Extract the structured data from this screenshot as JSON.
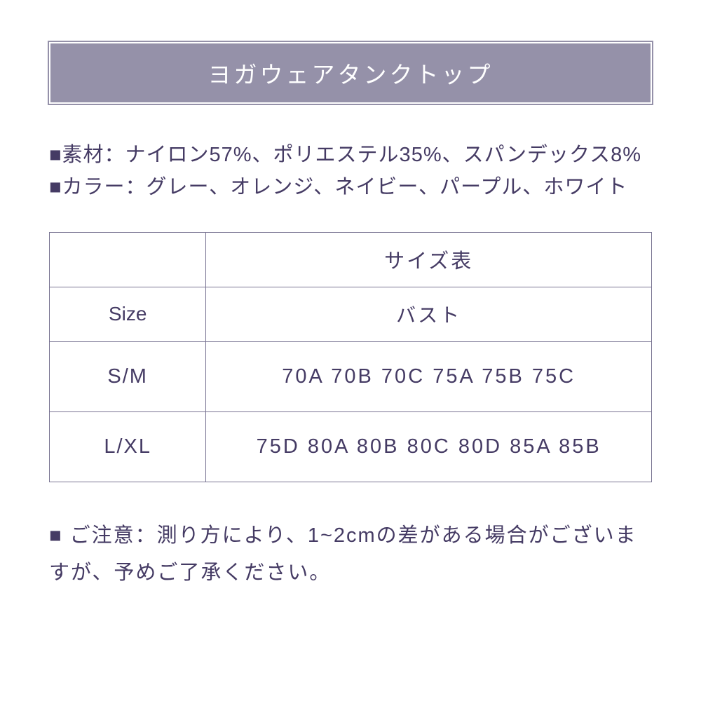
{
  "title": "ヨガウェアタンクトップ",
  "info": {
    "material": "■素材：ナイロン57%、ポリエステル35%、スパンデックス8%",
    "color": "■カラー：グレー、オレンジ、ネイビー、パープル、ホワイト"
  },
  "table": {
    "header_blank": "",
    "header_title": "サイズ表",
    "col_size": "Size",
    "col_bust": "バスト",
    "rows": [
      {
        "size": "S/M",
        "bust": "70A 70B 70C 75A 75B 75C"
      },
      {
        "size": "L/XL",
        "bust": "75D 80A 80B 80C 80D 85A 85B"
      }
    ]
  },
  "note": "■ ご注意：測り方により、1~2cmの差がある場合がございますが、予めご了承ください。",
  "colors": {
    "banner_bg": "#9591a9",
    "text": "#453b64",
    "border": "#7a7593",
    "bg": "#ffffff"
  }
}
